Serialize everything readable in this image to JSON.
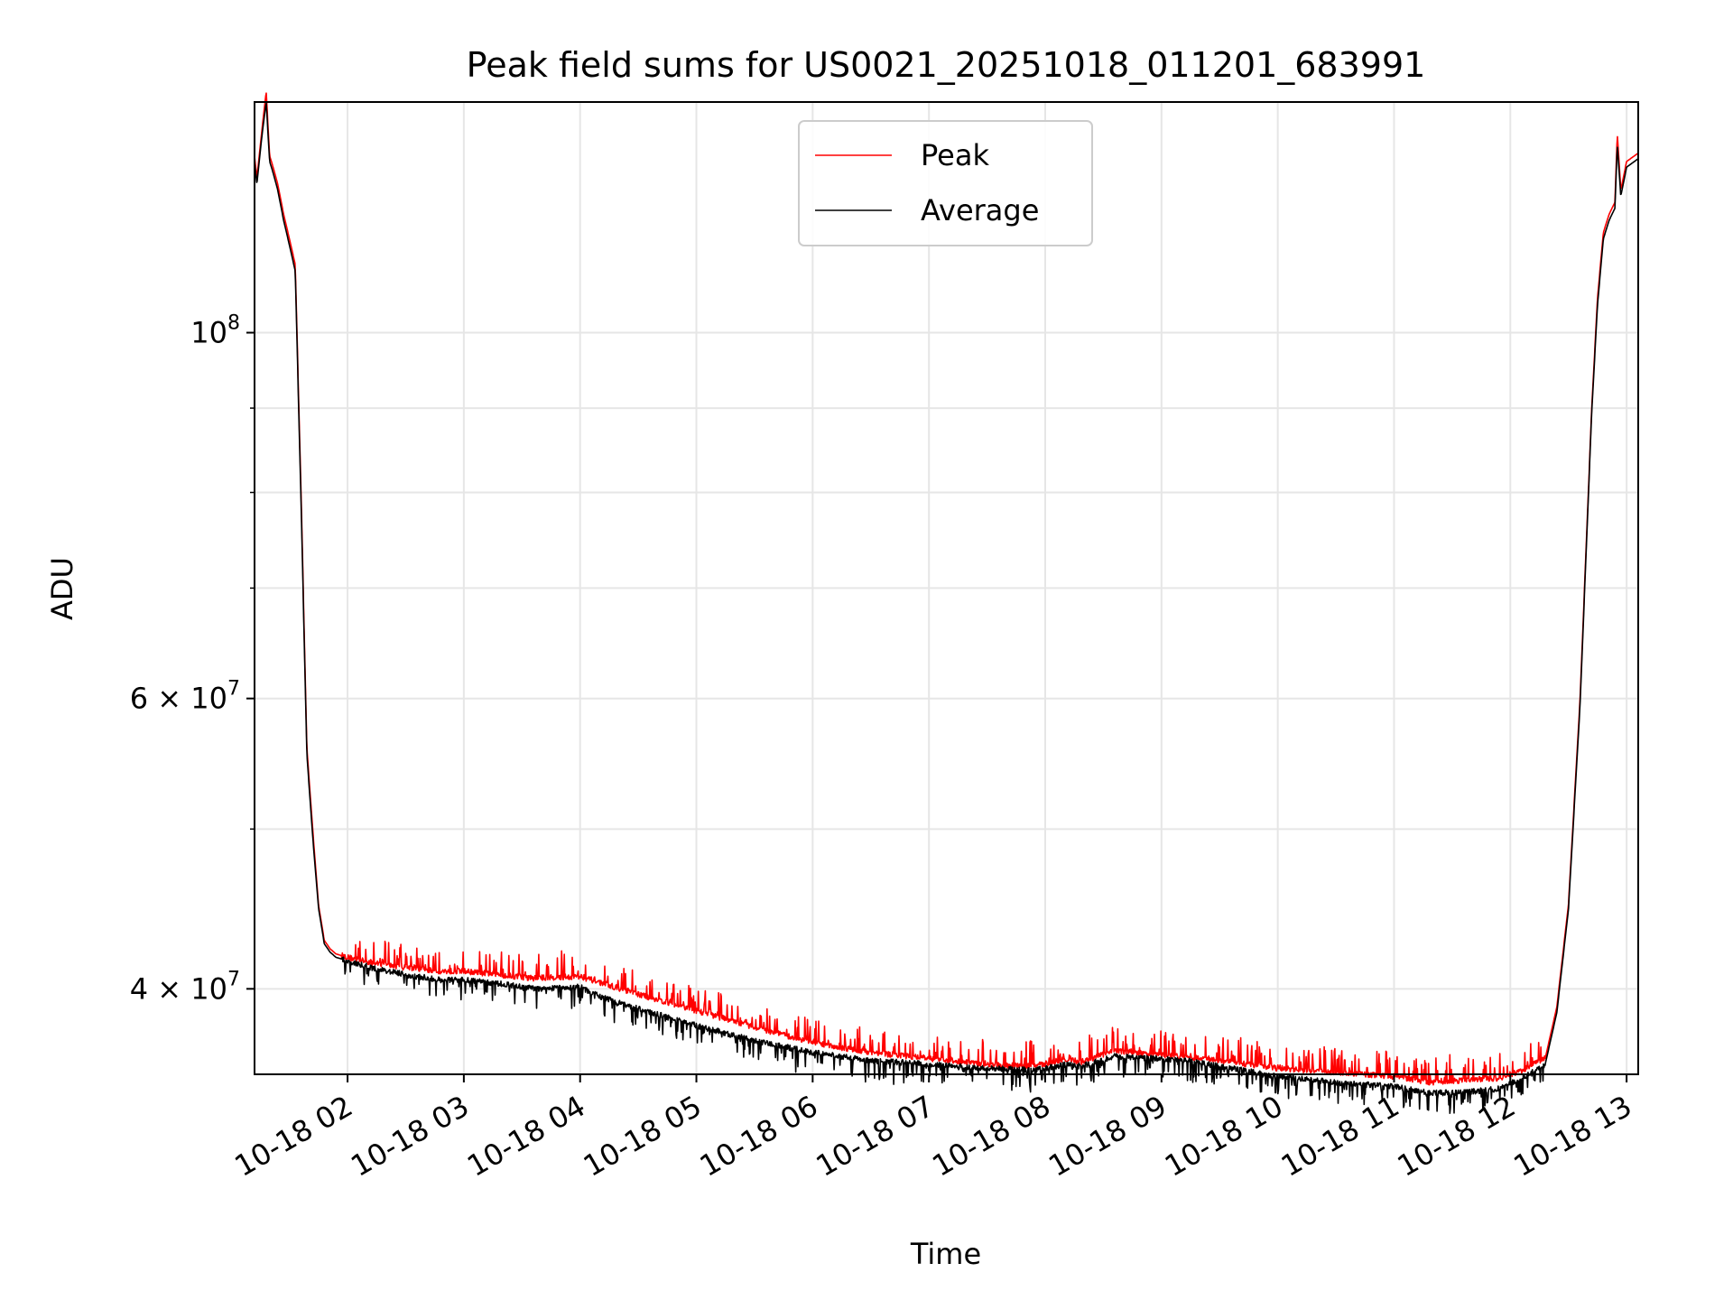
{
  "chart_data": {
    "type": "line",
    "title": "Peak field sums for US0021_20251018_011201_683991",
    "xlabel": "Time",
    "ylabel": "ADU",
    "yscale": "log",
    "xlim": [
      1.2,
      13.1
    ],
    "ylim": [
      35500000,
      138000000
    ],
    "grid": true,
    "legend_position": "upper center",
    "x_ticks": [
      {
        "value": 2,
        "label": "10-18 02"
      },
      {
        "value": 3,
        "label": "10-18 03"
      },
      {
        "value": 4,
        "label": "10-18 04"
      },
      {
        "value": 5,
        "label": "10-18 05"
      },
      {
        "value": 6,
        "label": "10-18 06"
      },
      {
        "value": 7,
        "label": "10-18 07"
      },
      {
        "value": 8,
        "label": "10-18 08"
      },
      {
        "value": 9,
        "label": "10-18 09"
      },
      {
        "value": 10,
        "label": "10-18 10"
      },
      {
        "value": 11,
        "label": "10-18 11"
      },
      {
        "value": 12,
        "label": "10-18 12"
      },
      {
        "value": 13,
        "label": "10-18 13"
      }
    ],
    "y_major_ticks": [
      {
        "value": 100000000,
        "base": "10",
        "exp": "8"
      },
      {
        "value": 60000000,
        "base": "6 × 10",
        "exp": "7"
      },
      {
        "value": 40000000,
        "base": "4 × 10",
        "exp": "7"
      }
    ],
    "y_minor_ticks": [
      50000000,
      70000000,
      80000000,
      90000000
    ],
    "series": [
      {
        "name": "Peak",
        "color": "#ff0000",
        "x": [
          1.2,
          1.22,
          1.26,
          1.3,
          1.33,
          1.36,
          1.4,
          1.45,
          1.5,
          1.55,
          1.6,
          1.65,
          1.7,
          1.75,
          1.8,
          1.85,
          1.9,
          2.0,
          2.2,
          2.5,
          2.8,
          3.0,
          3.3,
          3.6,
          4.0,
          4.2,
          4.5,
          5.0,
          5.5,
          6.0,
          6.5,
          7.0,
          7.5,
          7.9,
          8.2,
          8.3,
          8.6,
          8.9,
          9.2,
          9.6,
          10.0,
          10.5,
          11.0,
          11.3,
          11.6,
          11.9,
          12.1,
          12.3,
          12.4,
          12.5,
          12.6,
          12.7,
          12.75,
          12.8,
          12.85,
          12.9,
          12.92,
          12.95,
          13.0,
          13.1
        ],
        "y": [
          128000000,
          124000000,
          132000000,
          140000000,
          128000000,
          126000000,
          123000000,
          118000000,
          114000000,
          110000000,
          80000000,
          56000000,
          50000000,
          45000000,
          42800000,
          42300000,
          42000000,
          41800000,
          41500000,
          41200000,
          41000000,
          41000000,
          40800000,
          40600000,
          40700000,
          40300000,
          39700000,
          38800000,
          37900000,
          37100000,
          36600000,
          36300000,
          36000000,
          35900000,
          36300000,
          36100000,
          36700000,
          36500000,
          36400000,
          36100000,
          35800000,
          35600000,
          35400000,
          35100000,
          35200000,
          35300000,
          35700000,
          36300000,
          39000000,
          45000000,
          60000000,
          90000000,
          105000000,
          115000000,
          118000000,
          120000000,
          132000000,
          122000000,
          127000000,
          128500000
        ]
      },
      {
        "name": "Average",
        "color": "#000000",
        "x": [
          1.2,
          1.22,
          1.26,
          1.3,
          1.33,
          1.36,
          1.4,
          1.45,
          1.5,
          1.55,
          1.6,
          1.65,
          1.7,
          1.75,
          1.8,
          1.85,
          1.9,
          2.0,
          2.2,
          2.5,
          2.8,
          3.0,
          3.3,
          3.6,
          4.0,
          4.2,
          4.5,
          5.0,
          5.5,
          6.0,
          6.5,
          7.0,
          7.5,
          7.9,
          8.2,
          8.3,
          8.6,
          8.9,
          9.2,
          9.6,
          10.0,
          10.5,
          11.0,
          11.3,
          11.6,
          11.9,
          12.1,
          12.3,
          12.4,
          12.5,
          12.6,
          12.7,
          12.75,
          12.8,
          12.85,
          12.9,
          12.92,
          12.95,
          13.0,
          13.1
        ],
        "y": [
          127000000,
          123000000,
          131000000,
          138000000,
          127000000,
          125000000,
          122000000,
          117000000,
          113000000,
          109000000,
          79000000,
          55500000,
          49500000,
          44800000,
          42600000,
          42100000,
          41800000,
          41600000,
          41200000,
          40800000,
          40500000,
          40500000,
          40300000,
          40000000,
          40100000,
          39500000,
          38900000,
          38000000,
          37200000,
          36600000,
          36200000,
          36000000,
          35800000,
          35700000,
          36000000,
          35900000,
          36400000,
          36300000,
          36200000,
          35800000,
          35400000,
          35100000,
          34900000,
          34600000,
          34600000,
          34800000,
          35300000,
          36000000,
          38700000,
          44700000,
          59500000,
          89500000,
          104000000,
          114000000,
          117000000,
          119000000,
          130000000,
          121000000,
          126000000,
          127500000
        ]
      }
    ]
  }
}
